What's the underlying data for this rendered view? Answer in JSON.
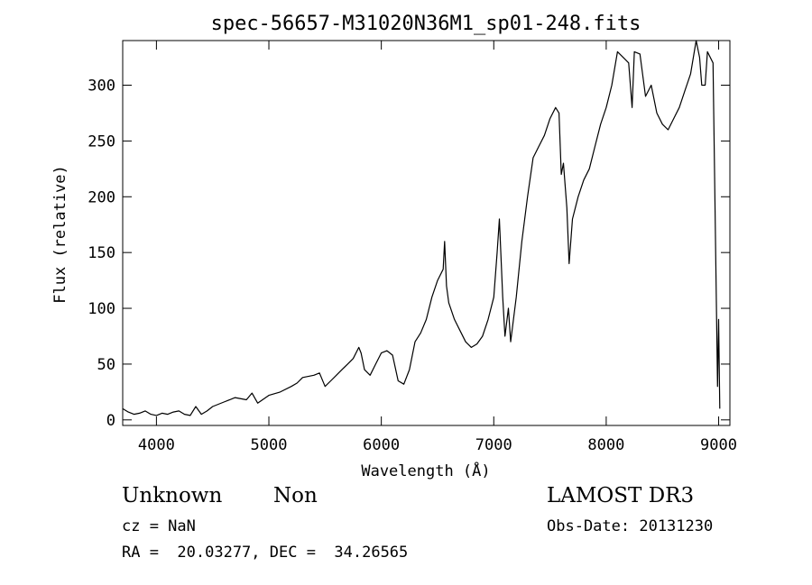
{
  "chart_data": {
    "type": "line",
    "title": "spec-56657-M31020N36M1_sp01-248.fits",
    "xlabel": "Wavelength (Å)",
    "ylabel": "Flux (relative)",
    "xlim": [
      3700,
      9100
    ],
    "ylim": [
      -5,
      340
    ],
    "xticks": [
      4000,
      5000,
      6000,
      7000,
      8000,
      9000
    ],
    "yticks": [
      0,
      50,
      100,
      150,
      200,
      250,
      300
    ],
    "grid": false,
    "line_color": "#000000",
    "series": [
      {
        "x": [
          3700,
          3750,
          3800,
          3850,
          3900,
          3950,
          4000,
          4050,
          4100,
          4150,
          4200,
          4250,
          4300,
          4350,
          4400,
          4450,
          4500,
          4600,
          4700,
          4800,
          4850,
          4900,
          5000,
          5100,
          5200,
          5250,
          5300,
          5400,
          5450,
          5500,
          5550,
          5600,
          5650,
          5700,
          5750,
          5800,
          5820,
          5850,
          5900,
          5950,
          6000,
          6050,
          6100,
          6150,
          6200,
          6250,
          6300,
          6350,
          6400,
          6450,
          6500,
          6550,
          6563,
          6580,
          6600,
          6650,
          6700,
          6750,
          6800,
          6850,
          6900,
          6950,
          7000,
          7030,
          7050,
          7080,
          7100,
          7130,
          7150,
          7200,
          7250,
          7300,
          7350,
          7400,
          7450,
          7500,
          7550,
          7580,
          7600,
          7620,
          7650,
          7670,
          7700,
          7750,
          7800,
          7850,
          7900,
          7950,
          8000,
          8050,
          8100,
          8150,
          8200,
          8230,
          8250,
          8300,
          8350,
          8400,
          8450,
          8500,
          8550,
          8600,
          8650,
          8700,
          8750,
          8800,
          8830,
          8850,
          8880,
          8900,
          8950,
          8990,
          9000,
          9010
        ],
        "y": [
          10,
          7,
          5,
          6,
          8,
          5,
          4,
          6,
          5,
          7,
          8,
          5,
          4,
          12,
          5,
          8,
          12,
          16,
          20,
          18,
          24,
          15,
          22,
          25,
          30,
          33,
          38,
          40,
          42,
          30,
          35,
          40,
          45,
          50,
          55,
          65,
          60,
          45,
          40,
          50,
          60,
          62,
          58,
          35,
          32,
          45,
          70,
          78,
          90,
          110,
          125,
          135,
          160,
          120,
          105,
          90,
          80,
          70,
          65,
          68,
          75,
          90,
          110,
          150,
          180,
          110,
          75,
          100,
          70,
          110,
          160,
          200,
          235,
          245,
          255,
          270,
          280,
          275,
          220,
          230,
          190,
          140,
          180,
          200,
          215,
          225,
          245,
          265,
          280,
          300,
          330,
          325,
          320,
          280,
          330,
          328,
          290,
          300,
          275,
          265,
          260,
          270,
          280,
          295,
          310,
          340,
          325,
          300,
          300,
          330,
          320,
          30,
          90,
          10
        ]
      }
    ]
  },
  "info": {
    "object_class": "Unknown",
    "object_subclass": "Non",
    "redshift": "cz = NaN",
    "coords": "RA =  20.03277, DEC =  34.26565",
    "survey": "LAMOST DR3",
    "obs_date": "Obs-Date: 20131230"
  }
}
